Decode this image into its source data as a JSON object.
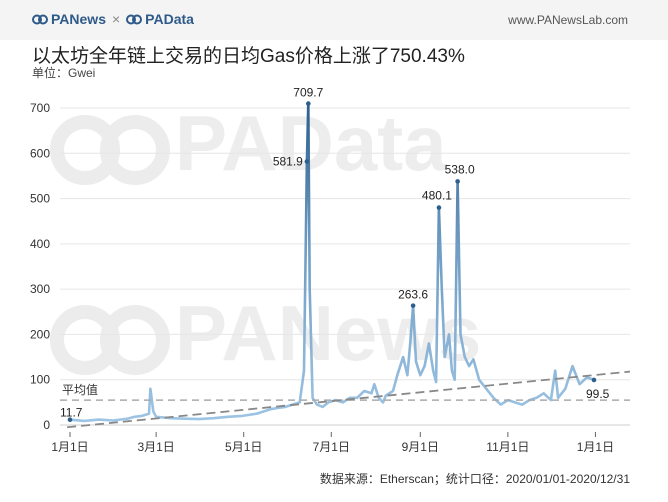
{
  "header": {
    "brand_left": "PANews",
    "brand_sep": "×",
    "brand_right": "PAData",
    "site": "www.PANewsLab.com"
  },
  "title": "以太坊全年链上交易的日均Gas价格上涨了750.43%",
  "unit_label": "单位：Gwei",
  "footer": {
    "source": "数据来源：Etherscan；统计口径：2020/01/01-2020/12/31"
  },
  "watermarks": [
    "PAData",
    "PANews"
  ],
  "colors": {
    "line_light": "#9dc4e4",
    "line_dark": "#2d5f8c",
    "trend": "#888888",
    "avg": "#aaaaaa"
  },
  "chart_data": {
    "type": "line",
    "x_ticks": [
      "1月1日",
      "3月1日",
      "5月1日",
      "7月1日",
      "9月1日",
      "11月1日",
      "1月1日"
    ],
    "y_ticks": [
      "0",
      "100",
      "200",
      "300",
      "400",
      "500",
      "600",
      "700"
    ],
    "ylim": [
      0,
      700
    ],
    "grid": true,
    "average_label": "平均值",
    "average_value": 55,
    "trend": {
      "start": -5,
      "end": 118
    },
    "annotations": [
      {
        "day": 0,
        "value": 11.7,
        "label": "11.7"
      },
      {
        "day": 165,
        "value": 581.9,
        "label": "581.9"
      },
      {
        "day": 166,
        "value": 709.7,
        "label": "709.7"
      },
      {
        "day": 239,
        "value": 263.6,
        "label": "263.6"
      },
      {
        "day": 257,
        "value": 480.1,
        "label": "480.1"
      },
      {
        "day": 270,
        "value": 538.0,
        "label": "538.0"
      },
      {
        "day": 365,
        "value": 99.5,
        "label": "99.5"
      }
    ],
    "series": [
      {
        "x": [
          0,
          10,
          20,
          30,
          40,
          45,
          50,
          55,
          56,
          58,
          60,
          70,
          80,
          90,
          100,
          110,
          120,
          130,
          135,
          140,
          145,
          150,
          155,
          160,
          163,
          165,
          166,
          167,
          169,
          172,
          176,
          180,
          185,
          190,
          195,
          200,
          205,
          210,
          212,
          215,
          218,
          220,
          225,
          228,
          232,
          235,
          237,
          239,
          241,
          244,
          247,
          250,
          253,
          255,
          257,
          259,
          261,
          264,
          266,
          268,
          270,
          272,
          275,
          278,
          281,
          285,
          290,
          295,
          300,
          305,
          310,
          315,
          320,
          325,
          330,
          335,
          338,
          340,
          345,
          350,
          355,
          360,
          365
        ],
        "values": [
          11.7,
          9,
          12,
          10,
          14,
          18,
          20,
          25,
          80,
          30,
          18,
          15,
          14,
          13,
          15,
          18,
          20,
          25,
          30,
          35,
          38,
          40,
          45,
          50,
          120,
          581.9,
          709.7,
          300,
          60,
          45,
          40,
          50,
          55,
          50,
          60,
          60,
          75,
          70,
          90,
          60,
          50,
          65,
          75,
          110,
          150,
          110,
          180,
          263.6,
          140,
          110,
          130,
          180,
          120,
          95,
          480.1,
          300,
          150,
          200,
          120,
          100,
          538.0,
          200,
          150,
          130,
          145,
          100,
          80,
          60,
          45,
          55,
          50,
          45,
          55,
          60,
          70,
          55,
          120,
          60,
          80,
          130,
          90,
          105,
          99.5
        ]
      }
    ]
  }
}
